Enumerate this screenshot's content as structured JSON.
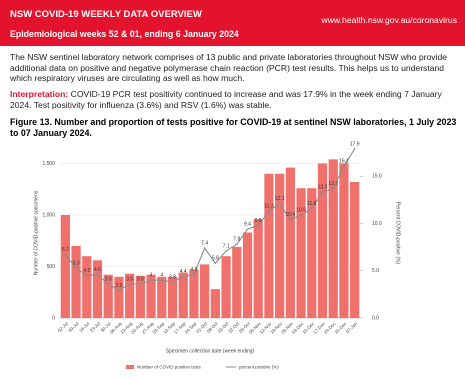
{
  "header": {
    "title": "NSW COVID-19 WEEKLY DATA OVERVIEW",
    "subtitle": "Epidemiological weeks 52 & 01, ending 6 January 2024",
    "url": "www.health.nsw.gov.au/coronavirus"
  },
  "intro": "The NSW sentinel laboratory network comprises of 13 public and private laboratories throughout NSW who provide additional data on positive and negative polymerase chain reaction (PCR) test results. This helps us to understand which respiratory viruses are circulating as well as how much.",
  "interpretation": {
    "label": "Interpretation:",
    "text": "COVID-19 PCR test positivity continued to increase and was 17.9% in the week ending 7 January 2024. Test positivity for influenza (3.6%) and RSV (1.6%) was stable."
  },
  "chart_data": {
    "type": "bar-line",
    "title": "Figure 13. Number and proportion of tests positive for COVID-19 at sentinel NSW laboratories, 1 July 2023 to 07 January 2024.",
    "categories": [
      "02-Jul",
      "09-Jul",
      "16-Jul",
      "23-Jul",
      "30-Jul",
      "06-Aug",
      "13-Aug",
      "20-Aug",
      "27-Aug",
      "03-Sep",
      "10-Sep",
      "17-Sep",
      "24-Sep",
      "01-Oct",
      "08-Oct",
      "15-Oct",
      "22-Oct",
      "29-Oct",
      "05-Nov",
      "12-Nov",
      "19-Nov",
      "26-Nov",
      "03-Dec",
      "10-Dec",
      "17-Dec",
      "24-Dec",
      "31-Dec",
      "07-Jan"
    ],
    "series": [
      {
        "name": "Number of COVID positive tests",
        "color": "#f0706c",
        "values": [
          1000,
          700,
          600,
          560,
          420,
          400,
          430,
          410,
          420,
          400,
          400,
          440,
          470,
          520,
          280,
          600,
          690,
          830,
          960,
          1400,
          1400,
          1460,
          1260,
          1260,
          1500,
          1540,
          1500,
          1320
        ]
      },
      {
        "name": "percent positive (%)",
        "color": "#8c8c8c",
        "axis": "y2",
        "values": [
          6.7,
          5.3,
          4.5,
          4.6,
          3.6,
          2.9,
          3.6,
          3.6,
          4,
          4,
          3.8,
          4.4,
          4.6,
          7.4,
          5.8,
          7.1,
          7.8,
          9.4,
          9.8,
          11.3,
          12.1,
          10.4,
          10.9,
          11.6,
          13.3,
          13.7,
          16.1,
          17.9
        ]
      }
    ],
    "ylim": [
      0,
      1650
    ],
    "yticks": [
      0,
      500,
      {
        "value": 1000,
        "label": "1,000"
      },
      {
        "value": 1500,
        "label": "1,500"
      }
    ],
    "y2lim": [
      0,
      18
    ],
    "y2ticks": [
      {
        "value": 0,
        "label": "0.0"
      },
      {
        "value": 5,
        "label": "5.0"
      },
      {
        "value": 10,
        "label": "10.0"
      },
      {
        "value": 15,
        "label": "15.0"
      }
    ],
    "ylabel": "Number of COVID-positive specimens",
    "y2label": "Percent COVID-positive (%)",
    "xlabel": "Specimen collection date (week ending)",
    "grid": true
  }
}
